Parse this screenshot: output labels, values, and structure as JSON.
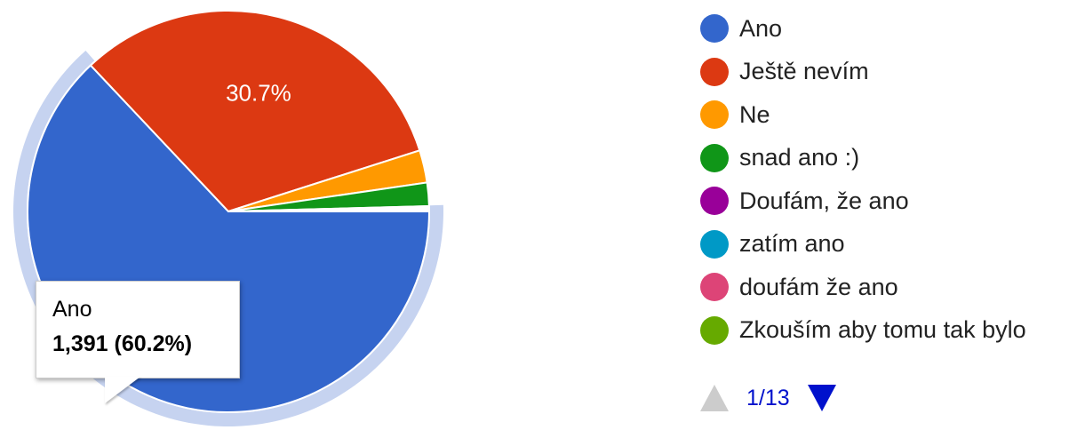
{
  "chart_data": {
    "type": "pie",
    "categories": [
      "Ano",
      "Ještě nevím",
      "Ne",
      "snad ano :)",
      "Doufám, že ano",
      "zatím ano",
      "doufám že ano",
      "Zkouším aby tomu tak bylo"
    ],
    "values": [
      60.2,
      30.7,
      2.5,
      1.8,
      0.1,
      0.1,
      0.1,
      0.1
    ],
    "colors": [
      "#3366cc",
      "#dc3912",
      "#ff9900",
      "#109618",
      "#990099",
      "#0099c6",
      "#dd4477",
      "#66aa00"
    ],
    "slice_labels": [
      "",
      "30.7%",
      "",
      "",
      "",
      "",
      "",
      ""
    ],
    "highlighted_slice": 0,
    "highlight_ring_color": "#c6d3f0"
  },
  "tooltip": {
    "label": "Ano",
    "value": "1,391 (60.2%)"
  },
  "pager": {
    "text": "1/13",
    "active_color": "#0011cc",
    "inactive_color": "#cccccc"
  }
}
